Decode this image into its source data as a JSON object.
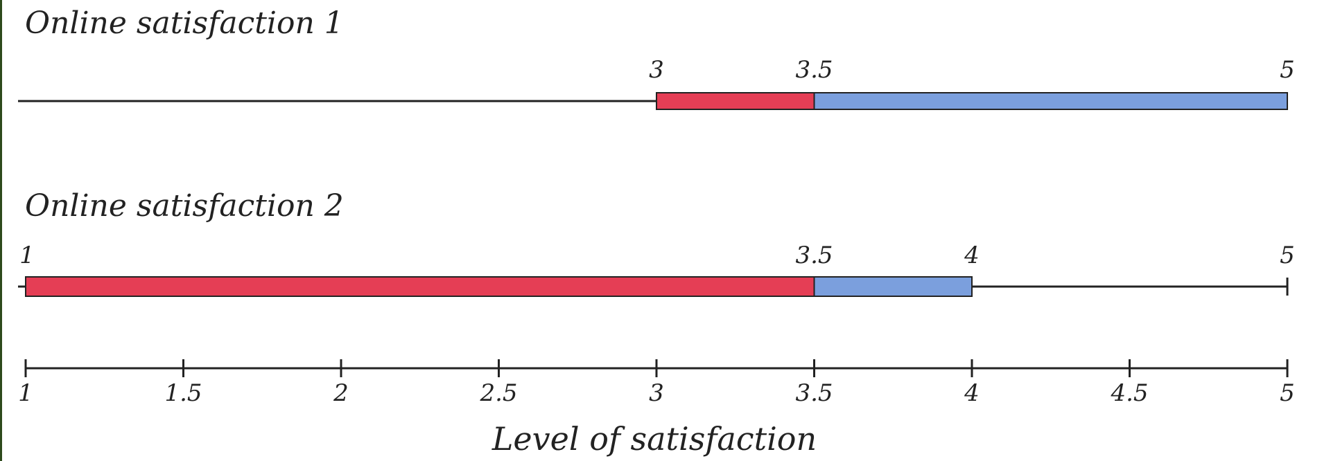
{
  "chart_data": {
    "type": "bar",
    "xlabel": "Level of satisfaction",
    "xlim": [
      1,
      5
    ],
    "ticks": [
      "1",
      "1.5",
      "2",
      "2.5",
      "3",
      "3.5",
      "4",
      "4.5",
      "5"
    ],
    "colors": {
      "low_segment": "#e53e55",
      "high_segment": "#7b9fdd",
      "line": "#222222"
    },
    "series": [
      {
        "title": "Online satisfaction 1",
        "line_range": [
          1,
          5
        ],
        "segments": [
          {
            "from": 3,
            "to": 3.5,
            "color": "low_segment"
          },
          {
            "from": 3.5,
            "to": 5,
            "color": "high_segment"
          }
        ],
        "point_labels": [
          {
            "value": 3,
            "text": "3"
          },
          {
            "value": 3.5,
            "text": "3.5"
          },
          {
            "value": 5,
            "text": "5"
          }
        ]
      },
      {
        "title": "Online satisfaction 2",
        "line_range": [
          1,
          5
        ],
        "segments": [
          {
            "from": 1,
            "to": 3.5,
            "color": "low_segment"
          },
          {
            "from": 3.5,
            "to": 4,
            "color": "high_segment"
          }
        ],
        "point_labels": [
          {
            "value": 1,
            "text": "1"
          },
          {
            "value": 3.5,
            "text": "3.5"
          },
          {
            "value": 4,
            "text": "4"
          },
          {
            "value": 5,
            "text": "5"
          }
        ]
      }
    ]
  }
}
